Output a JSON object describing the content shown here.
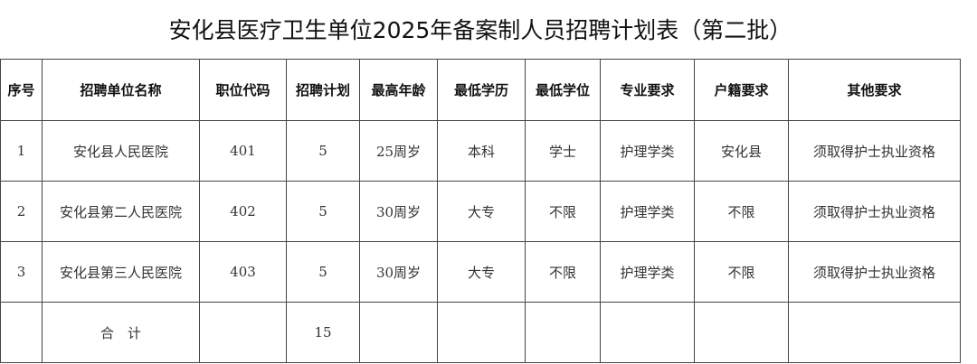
{
  "title": "安化县医疗卫生单位2025年备案制人员招聘计划表（第二批）",
  "table": {
    "headers": [
      "序号",
      "招聘单位名称",
      "职位代码",
      "招聘计划",
      "最高年龄",
      "最低学历",
      "最低学位",
      "专业要求",
      "户籍要求",
      "其他要求"
    ],
    "rows": [
      [
        "1",
        "安化县人民医院",
        "401",
        "5",
        "25周岁",
        "本科",
        "学士",
        "护理学类",
        "安化县",
        "须取得护士执业资格"
      ],
      [
        "2",
        "安化县第二人民医院",
        "402",
        "5",
        "30周岁",
        "大专",
        "不限",
        "护理学类",
        "不限",
        "须取得护士执业资格"
      ],
      [
        "3",
        "安化县第三人民医院",
        "403",
        "5",
        "30周岁",
        "大专",
        "不限",
        "护理学类",
        "不限",
        "须取得护士执业资格"
      ]
    ],
    "total": {
      "label": "合　计",
      "plan": "15"
    }
  }
}
